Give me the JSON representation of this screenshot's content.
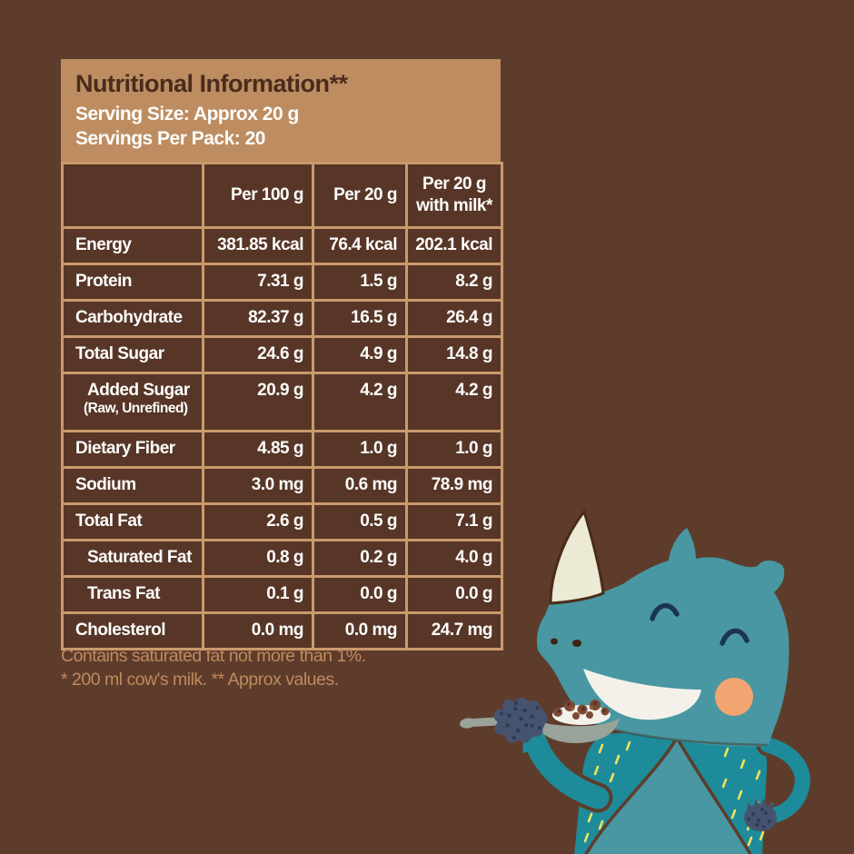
{
  "page": {
    "colors": {
      "background": "#5e3c2b",
      "panel_tan": "#bd8d61",
      "border_tan": "#ca9a6c",
      "cell_bg": "#573628",
      "title_brown": "#4a2c1d",
      "text_white": "#fdfdfb",
      "footnote_tan": "#bf8a5e"
    }
  },
  "panel": {
    "header": {
      "title": "Nutritional Information**",
      "serving_size": "Serving Size: Approx 20 g",
      "servings_per_pack": "Servings Per Pack: 20"
    },
    "table": {
      "columns": [
        {
          "lines": [
            ""
          ]
        },
        {
          "lines": [
            "Per 100 g"
          ]
        },
        {
          "lines": [
            "Per 20 g"
          ]
        },
        {
          "lines": [
            "Per 20 g",
            "with milk*"
          ]
        }
      ],
      "rows": [
        {
          "label": "Energy",
          "sublabel": "",
          "indent": false,
          "values": [
            "381.85 kcal",
            "76.4 kcal",
            "202.1 kcal"
          ]
        },
        {
          "label": "Protein",
          "sublabel": "",
          "indent": false,
          "values": [
            "7.31 g",
            "1.5 g",
            "8.2 g"
          ]
        },
        {
          "label": "Carbohydrate",
          "sublabel": "",
          "indent": false,
          "values": [
            "82.37 g",
            "16.5 g",
            "26.4 g"
          ]
        },
        {
          "label": "Total Sugar",
          "sublabel": "",
          "indent": false,
          "values": [
            "24.6 g",
            "4.9 g",
            "14.8 g"
          ]
        },
        {
          "label": "Added Sugar",
          "sublabel": "(Raw, Unrefined)",
          "indent": true,
          "values": [
            "20.9 g",
            "4.2 g",
            "4.2 g"
          ]
        },
        {
          "label": "Dietary Fiber",
          "sublabel": "",
          "indent": false,
          "values": [
            "4.85 g",
            "1.0 g",
            "1.0 g"
          ]
        },
        {
          "label": "Sodium",
          "sublabel": "",
          "indent": false,
          "values": [
            "3.0 mg",
            "0.6 mg",
            "78.9 mg"
          ]
        },
        {
          "label": "Total Fat",
          "sublabel": "",
          "indent": false,
          "values": [
            "2.6 g",
            "0.5 g",
            "7.1 g"
          ]
        },
        {
          "label": "Saturated Fat",
          "sublabel": "",
          "indent": true,
          "values": [
            "0.8 g",
            "0.2 g",
            "4.0 g"
          ]
        },
        {
          "label": "Trans Fat",
          "sublabel": "",
          "indent": true,
          "values": [
            "0.1 g",
            "0.0 g",
            "0.0 g"
          ]
        },
        {
          "label": "Cholesterol",
          "sublabel": "",
          "indent": false,
          "values": [
            "0.0 mg",
            "0.0 mg",
            "24.7 mg"
          ]
        }
      ]
    },
    "footnotes": [
      "Contains saturated fat not more than 1%.",
      "* 200 ml cow's milk. ** Approx values."
    ]
  },
  "illustration": {
    "name": "rhino-eating-cereal-with-spoon",
    "colors": {
      "body": "#4897a2",
      "vest": "#1d8b9a",
      "horn": "#ece9d4",
      "horn_outline": "#4b2c19",
      "smile": "#f3f1ea",
      "cheek": "#f3a571",
      "eye": "#1d3450",
      "fist": "#46536e",
      "fist_texture": "#2c3a55",
      "spoon": "#9aa39a",
      "milk": "#f3f1ea",
      "cereal": "#7b4a33",
      "cereal_dark": "#5a3123",
      "cereal_light": "#8f5a3e",
      "dash": "#ebe45f",
      "seam": "#5e3c2b"
    }
  }
}
